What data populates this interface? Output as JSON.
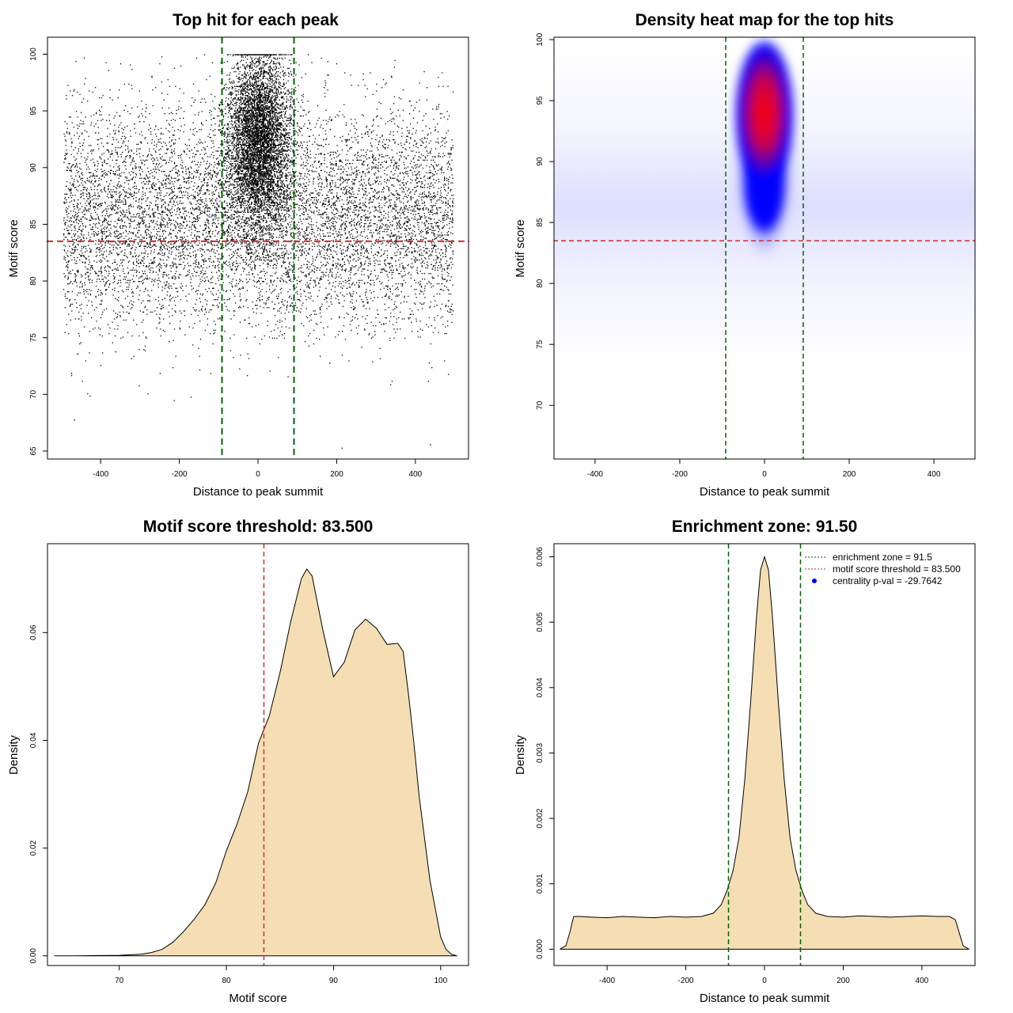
{
  "colors": {
    "threshold_line": "#d62728",
    "enrichment_line": "#006400",
    "density_fill": "#f5deb3",
    "heat_low": "#ffffff",
    "heat_mid": "#0000ff",
    "heat_high": "#ff0000",
    "legend_point": "#0000ff"
  },
  "chart_data": [
    {
      "id": "scatter",
      "type": "scatter",
      "title": "Top hit for each peak",
      "xlabel": "Distance to peak summit",
      "ylabel": "Motif score",
      "xlim": [
        -535,
        535
      ],
      "ylim": [
        64.3,
        101.5
      ],
      "xticks": [
        -400,
        -200,
        0,
        200,
        400
      ],
      "yticks": [
        65,
        70,
        75,
        80,
        85,
        90,
        95,
        100
      ],
      "hlines": [
        83.5
      ],
      "vlines": [
        -91.5,
        91.5
      ],
      "background": {
        "x_range": [
          -495,
          495
        ],
        "y_mean": 85.5,
        "y_sd": 5.0,
        "n_points": 9000
      },
      "central": {
        "x_sd": 40,
        "y_mean": 92.5,
        "y_sd": 4.0,
        "y_max": 100,
        "n_points": 6000
      },
      "outliers": [
        {
          "x": -475,
          "y": 71.9
        },
        {
          "x": -468,
          "y": 67.8
        },
        {
          "x": -250,
          "y": 71.9
        },
        {
          "x": 437,
          "y": 65.6
        },
        {
          "x": -363,
          "y": 73.8
        },
        {
          "x": 181,
          "y": 72.8
        },
        {
          "x": 434,
          "y": 72.8
        }
      ]
    },
    {
      "id": "heatmap",
      "type": "heatmap",
      "title": "Density heat map for the top hits",
      "xlabel": "Distance to peak summit",
      "ylabel": "Motif score",
      "xlim": [
        -497,
        497
      ],
      "ylim": [
        65.6,
        100.2
      ],
      "xticks": [
        -400,
        -200,
        0,
        200,
        400
      ],
      "yticks": [
        70,
        75,
        80,
        85,
        90,
        95,
        100
      ],
      "hlines": [
        83.5
      ],
      "vlines": [
        -91.5,
        91.5
      ],
      "core": {
        "x_center": 0,
        "x_sd": 30,
        "y_center": 94,
        "y_sd": 2.6
      },
      "tail": {
        "x_center": 0,
        "x_sd": 30,
        "y_center": 88,
        "y_sd": 2.5
      },
      "halo": {
        "x_center": 0,
        "x_sd": 36,
        "y_center": 91,
        "y_sd": 4.5
      },
      "background": {
        "y_center": 86.5,
        "y_sd": 4.2
      }
    },
    {
      "id": "density_score",
      "type": "area",
      "title": "Motif score threshold: 83.500",
      "xlabel": "Motif score",
      "ylabel": "Density",
      "xlim": [
        63.3,
        102.6
      ],
      "ylim": [
        -0.0018,
        0.0765
      ],
      "xticks": [
        70,
        80,
        90,
        100
      ],
      "yticks": [
        0,
        0.02,
        0.04,
        0.06
      ],
      "ytick_labels": [
        "0.00",
        "0.02",
        "0.04",
        "0.06"
      ],
      "vlines": [
        83.5
      ],
      "x": [
        64,
        66,
        68,
        70,
        72,
        73,
        74,
        75,
        76,
        77,
        78,
        79,
        80,
        81,
        82,
        83,
        84,
        85,
        86,
        87,
        87.5,
        88,
        89,
        90,
        91,
        92,
        93,
        94,
        95,
        96,
        96.5,
        97,
        97.5,
        98,
        99,
        100,
        100.5,
        101,
        101.5
      ],
      "y": [
        0,
        0,
        5e-05,
        0.0001,
        0.0003,
        0.0006,
        0.0012,
        0.0025,
        0.0045,
        0.0068,
        0.0095,
        0.0135,
        0.0195,
        0.0245,
        0.0305,
        0.0395,
        0.0445,
        0.0525,
        0.062,
        0.07,
        0.0718,
        0.0705,
        0.0605,
        0.0518,
        0.0545,
        0.0605,
        0.0625,
        0.0608,
        0.0578,
        0.058,
        0.0565,
        0.0485,
        0.0395,
        0.0295,
        0.014,
        0.0035,
        0.0012,
        0.0003,
        0
      ]
    },
    {
      "id": "density_distance",
      "type": "area",
      "title": "Enrichment zone: 91.50",
      "xlabel": "Distance to peak summit",
      "ylabel": "Density",
      "xlim": [
        -535,
        535
      ],
      "ylim": [
        -0.00025,
        0.0062
      ],
      "xticks": [
        -400,
        -200,
        0,
        200,
        400
      ],
      "yticks": [
        0,
        0.001,
        0.002,
        0.003,
        0.004,
        0.005,
        0.006
      ],
      "ytick_labels": [
        "0.000",
        "0.001",
        "0.002",
        "0.003",
        "0.004",
        "0.005",
        "0.006"
      ],
      "vlines": [
        -91.5,
        91.5
      ],
      "x": [
        -520,
        -505,
        -495,
        -485,
        -470,
        -440,
        -400,
        -360,
        -320,
        -280,
        -240,
        -200,
        -160,
        -130,
        -110,
        -95,
        -80,
        -65,
        -50,
        -35,
        -20,
        -10,
        0,
        10,
        20,
        35,
        50,
        65,
        80,
        95,
        110,
        130,
        160,
        200,
        240,
        280,
        320,
        360,
        400,
        440,
        470,
        485,
        495,
        505,
        520
      ],
      "y": [
        0,
        5e-05,
        0.00025,
        0.0005,
        0.0005,
        0.00049,
        0.00048,
        0.0005,
        0.00049,
        0.00048,
        0.0005,
        0.00049,
        0.0005,
        0.00055,
        0.00068,
        0.0009,
        0.0012,
        0.0017,
        0.0026,
        0.0038,
        0.0051,
        0.0058,
        0.006,
        0.0058,
        0.0051,
        0.0038,
        0.0026,
        0.0017,
        0.0012,
        0.0009,
        0.00068,
        0.00055,
        0.0005,
        0.00049,
        0.00051,
        0.0005,
        0.00049,
        0.0005,
        0.00051,
        0.0005,
        0.0005,
        0.00045,
        0.00025,
        5e-05,
        0
      ],
      "legend": {
        "position": "top-right",
        "items": [
          {
            "label": "enrichment zone = 91.5",
            "type": "dotted-line",
            "color": "#006400"
          },
          {
            "label": "motif score threshold = 83.500",
            "type": "dotted-line",
            "color": "#d62728"
          },
          {
            "label": "centrality p-val = -29.7642",
            "type": "point",
            "color": "#0000ff"
          }
        ]
      }
    }
  ]
}
